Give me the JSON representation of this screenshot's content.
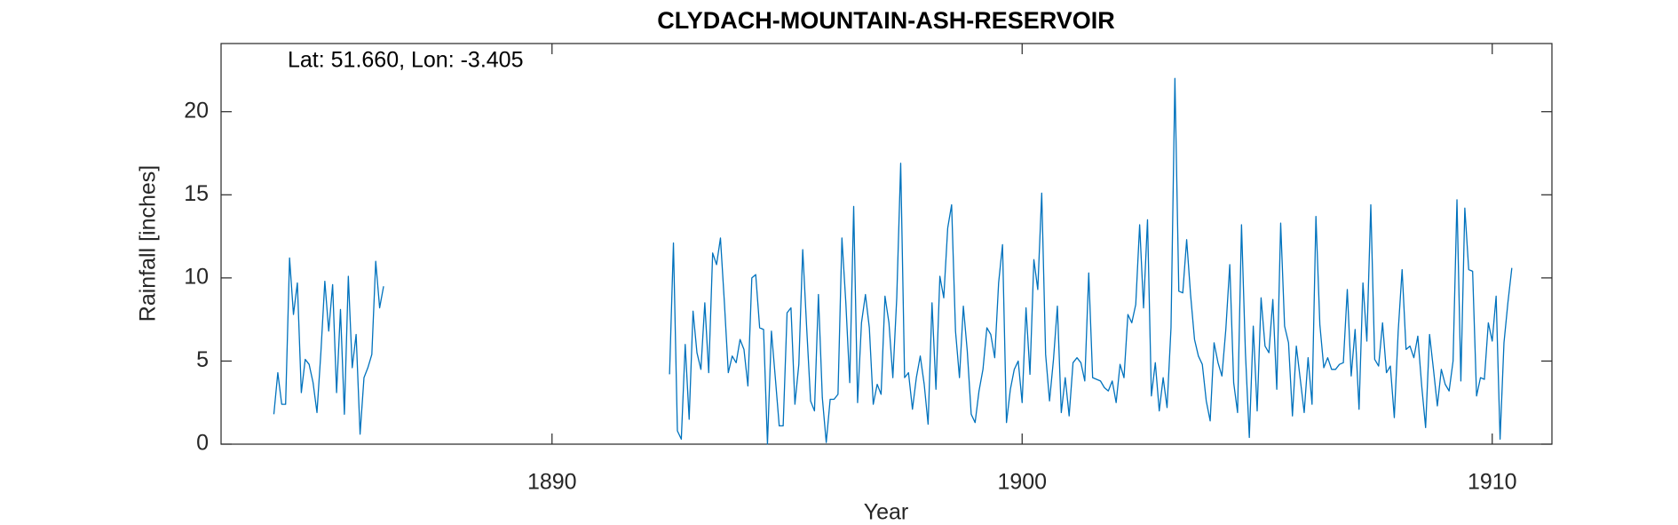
{
  "chart_data": {
    "type": "line",
    "title": "CLYDACH-MOUNTAIN-ASH-RESERVOIR",
    "annotation": "Lat: 51.660, Lon: -3.405",
    "xlabel": "Year",
    "ylabel": "Rainfall [inches]",
    "color": "#0072bd",
    "xlim": [
      1882.96,
      1911.27
    ],
    "xticks": [
      1890,
      1900,
      1910
    ],
    "ylim": [
      0,
      24.1
    ],
    "yticks": [
      0,
      5,
      10,
      15,
      20
    ],
    "grid": false,
    "x": [
      1884.083,
      1884.167,
      1884.25,
      1884.333,
      1884.417,
      1884.5,
      1884.583,
      1884.667,
      1884.75,
      1884.833,
      1884.917,
      1885,
      1885.083,
      1885.167,
      1885.25,
      1885.333,
      1885.417,
      1885.5,
      1885.583,
      1885.667,
      1885.75,
      1885.833,
      1885.917,
      1886,
      1886.083,
      1886.167,
      1886.25,
      1886.333,
      1886.417,
      1889.5,
      1892.5,
      1892.583,
      1892.667,
      1892.75,
      1892.833,
      1892.917,
      1893,
      1893.083,
      1893.167,
      1893.25,
      1893.333,
      1893.417,
      1893.5,
      1893.583,
      1893.667,
      1893.75,
      1893.833,
      1893.917,
      1894,
      1894.083,
      1894.167,
      1894.25,
      1894.333,
      1894.417,
      1894.5,
      1894.583,
      1894.667,
      1894.75,
      1894.833,
      1894.917,
      1895,
      1895.083,
      1895.167,
      1895.25,
      1895.333,
      1895.417,
      1895.5,
      1895.583,
      1895.667,
      1895.75,
      1895.833,
      1895.917,
      1896,
      1896.083,
      1896.167,
      1896.25,
      1896.333,
      1896.417,
      1896.5,
      1896.583,
      1896.667,
      1896.75,
      1896.833,
      1896.917,
      1897,
      1897.083,
      1897.167,
      1897.25,
      1897.333,
      1897.417,
      1897.5,
      1897.583,
      1897.667,
      1897.75,
      1897.833,
      1897.917,
      1898,
      1898.083,
      1898.167,
      1898.25,
      1898.333,
      1898.417,
      1898.5,
      1898.583,
      1898.667,
      1898.75,
      1898.833,
      1898.917,
      1899,
      1899.083,
      1899.167,
      1899.25,
      1899.333,
      1899.417,
      1899.5,
      1899.583,
      1899.667,
      1899.75,
      1899.833,
      1899.917,
      1900,
      1900.083,
      1900.167,
      1900.25,
      1900.333,
      1900.417,
      1900.5,
      1900.583,
      1900.667,
      1900.75,
      1900.833,
      1900.917,
      1901,
      1901.083,
      1901.167,
      1901.25,
      1901.333,
      1901.417,
      1901.5,
      1901.583,
      1901.667,
      1901.75,
      1901.833,
      1901.917,
      1902,
      1902.083,
      1902.167,
      1902.25,
      1902.333,
      1902.417,
      1902.5,
      1902.583,
      1902.667,
      1902.75,
      1902.833,
      1902.917,
      1903,
      1903.083,
      1903.167,
      1903.25,
      1903.333,
      1903.417,
      1903.5,
      1903.583,
      1903.667,
      1903.75,
      1903.833,
      1903.917,
      1904,
      1904.083,
      1904.167,
      1904.25,
      1904.333,
      1904.417,
      1904.5,
      1904.583,
      1904.667,
      1904.75,
      1904.833,
      1904.917,
      1905,
      1905.083,
      1905.167,
      1905.25,
      1905.333,
      1905.417,
      1905.5,
      1905.583,
      1905.667,
      1905.75,
      1905.833,
      1905.917,
      1906,
      1906.083,
      1906.167,
      1906.25,
      1906.333,
      1906.417,
      1906.5,
      1906.583,
      1906.667,
      1906.75,
      1906.833,
      1906.917,
      1907,
      1907.083,
      1907.167,
      1907.25,
      1907.333,
      1907.417,
      1907.5,
      1907.583,
      1907.667,
      1907.75,
      1907.833,
      1907.917,
      1908,
      1908.083,
      1908.167,
      1908.25,
      1908.333,
      1908.417,
      1908.5,
      1908.583,
      1908.667,
      1908.75,
      1908.833,
      1908.917,
      1909,
      1909.083,
      1909.167,
      1909.25,
      1909.333,
      1909.417,
      1909.5,
      1909.583,
      1909.667,
      1909.75,
      1909.833,
      1909.917,
      1910,
      1910.083,
      1910.167,
      1910.25,
      1910.333,
      1910.417
    ],
    "values": [
      1.8,
      4.3,
      2.4,
      2.4,
      11.2,
      7.8,
      9.7,
      3.1,
      5.1,
      4.8,
      3.7,
      1.9,
      5.5,
      9.8,
      6.8,
      9.6,
      3.1,
      8.1,
      1.8,
      10.1,
      4.6,
      6.6,
      0.6,
      4.0,
      4.6,
      5.4,
      11.0,
      8.2,
      9.5,
      null,
      4.2,
      12.1,
      0.8,
      0.3,
      6.0,
      1.5,
      8.0,
      5.5,
      4.5,
      8.5,
      4.3,
      11.5,
      10.8,
      12.4,
      8.5,
      4.3,
      5.3,
      4.9,
      6.3,
      5.7,
      3.5,
      10.0,
      10.2,
      7.0,
      6.9,
      0.0,
      6.8,
      4.0,
      1.1,
      1.1,
      7.9,
      8.2,
      2.4,
      4.8,
      11.7,
      7.0,
      2.6,
      2.0,
      9.0,
      2.8,
      0.1,
      2.7,
      2.7,
      3.0,
      12.4,
      8.5,
      3.7,
      14.3,
      2.5,
      7.3,
      9.0,
      7.0,
      2.4,
      3.6,
      3.0,
      8.9,
      7.3,
      4.0,
      8.8,
      16.9,
      4.0,
      4.3,
      2.1,
      4.0,
      5.3,
      3.6,
      1.2,
      8.5,
      3.3,
      10.1,
      8.8,
      13.0,
      14.4,
      6.8,
      4.0,
      8.3,
      5.6,
      1.8,
      1.3,
      3.2,
      4.5,
      7.0,
      6.6,
      5.2,
      9.7,
      12.0,
      1.3,
      3.3,
      4.5,
      5.0,
      2.5,
      8.2,
      4.2,
      11.1,
      9.3,
      15.1,
      5.4,
      2.6,
      5.1,
      8.3,
      1.9,
      4.0,
      1.7,
      4.9,
      5.2,
      4.9,
      3.8,
      10.3,
      4.0,
      3.9,
      3.8,
      3.4,
      3.2,
      3.8,
      2.5,
      4.8,
      4.0,
      7.8,
      7.3,
      8.4,
      13.2,
      8.2,
      13.5,
      2.9,
      4.9,
      2.0,
      4.0,
      2.2,
      7.0,
      22.0,
      9.2,
      9.1,
      12.3,
      9.0,
      6.3,
      5.3,
      4.8,
      2.6,
      1.4,
      6.1,
      4.9,
      4.1,
      6.9,
      10.8,
      3.7,
      1.9,
      13.2,
      5.5,
      0.4,
      7.1,
      2.0,
      8.8,
      5.9,
      5.5,
      8.7,
      3.3,
      13.3,
      7.1,
      6.1,
      1.7,
      5.9,
      3.9,
      1.9,
      5.2,
      2.4,
      13.7,
      7.2,
      4.6,
      5.2,
      4.5,
      4.5,
      4.8,
      4.9,
      9.3,
      4.1,
      6.9,
      2.1,
      9.7,
      6.2,
      14.4,
      5.1,
      4.7,
      7.3,
      4.3,
      4.7,
      1.6,
      6.8,
      10.5,
      5.7,
      5.9,
      5.2,
      6.5,
      3.5,
      1.0,
      6.6,
      4.5,
      2.3,
      4.5,
      3.6,
      3.2,
      5.0,
      14.7,
      3.8,
      14.2,
      10.5,
      10.4,
      2.9,
      4.0,
      3.9,
      7.3,
      6.2,
      8.9,
      0.3,
      6.1,
      8.5,
      10.6
    ]
  }
}
